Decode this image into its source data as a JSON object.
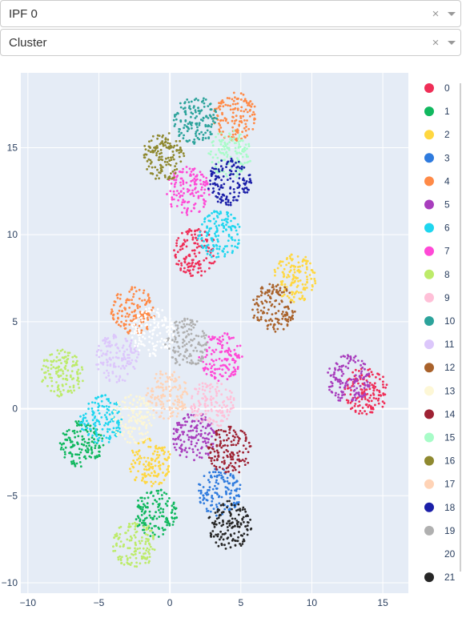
{
  "dropdowns": [
    {
      "value": "IPF 0",
      "clear_icon": "close-icon",
      "arrow_icon": "chevron-down-icon"
    },
    {
      "value": "Cluster",
      "clear_icon": "close-icon",
      "arrow_icon": "chevron-down-icon"
    }
  ],
  "chart_data": {
    "type": "scatter",
    "title": "",
    "xlabel": "",
    "ylabel": "",
    "xlim": [
      -10.5,
      16.8
    ],
    "ylim": [
      -10.6,
      19.3
    ],
    "xticks": [
      -10,
      -5,
      0,
      5,
      10,
      15
    ],
    "yticks": [
      -10,
      -5,
      0,
      5,
      10,
      15
    ],
    "grid": true,
    "plot_background": "#e5ecf6",
    "legend_placement": "right",
    "series": [
      {
        "name": "0",
        "color": "#ef2e57",
        "centers": [
          [
            1.8,
            9.0
          ],
          [
            13.8,
            1.0
          ]
        ]
      },
      {
        "name": "1",
        "color": "#11b85f",
        "centers": [
          [
            -6.2,
            -2.0
          ],
          [
            -1.0,
            -6.0
          ]
        ]
      },
      {
        "name": "2",
        "color": "#ffd740",
        "centers": [
          [
            -1.4,
            -3.1
          ],
          [
            8.8,
            7.5
          ]
        ]
      },
      {
        "name": "3",
        "color": "#2f7bde",
        "centers": [
          [
            3.5,
            -4.8
          ]
        ]
      },
      {
        "name": "4",
        "color": "#ff8a47",
        "centers": [
          [
            4.6,
            16.8
          ],
          [
            -2.6,
            5.6
          ]
        ]
      },
      {
        "name": "5",
        "color": "#a83dbd",
        "centers": [
          [
            12.6,
            1.7
          ],
          [
            1.7,
            -1.6
          ]
        ]
      },
      {
        "name": "6",
        "color": "#1fd6ef",
        "centers": [
          [
            3.5,
            10.0
          ],
          [
            -4.8,
            -0.6
          ]
        ]
      },
      {
        "name": "7",
        "color": "#ff49d6",
        "centers": [
          [
            1.3,
            12.5
          ],
          [
            3.6,
            3.0
          ]
        ]
      },
      {
        "name": "8",
        "color": "#bdeb6a",
        "centers": [
          [
            -7.6,
            2.0
          ],
          [
            -2.5,
            -7.8
          ]
        ]
      },
      {
        "name": "9",
        "color": "#ffc0d8",
        "centers": [
          [
            3.0,
            0.3
          ]
        ]
      },
      {
        "name": "10",
        "color": "#2ca39b",
        "centers": [
          [
            1.8,
            16.6
          ]
        ]
      },
      {
        "name": "11",
        "color": "#dcc7fb",
        "centers": [
          [
            -3.7,
            2.9
          ]
        ]
      },
      {
        "name": "12",
        "color": "#a9622b",
        "centers": [
          [
            7.3,
            5.8
          ]
        ]
      },
      {
        "name": "13",
        "color": "#fdf7d6",
        "centers": [
          [
            -2.6,
            -0.6
          ]
        ]
      },
      {
        "name": "14",
        "color": "#9e2233",
        "centers": [
          [
            4.2,
            -2.4
          ]
        ]
      },
      {
        "name": "15",
        "color": "#a8fcc8",
        "centers": [
          [
            4.2,
            14.6
          ]
        ]
      },
      {
        "name": "16",
        "color": "#8f8930",
        "centers": [
          [
            -0.4,
            14.5
          ]
        ]
      },
      {
        "name": "17",
        "color": "#ffd3b6",
        "centers": [
          [
            -0.2,
            0.8
          ]
        ]
      },
      {
        "name": "18",
        "color": "#1b1fa8",
        "centers": [
          [
            4.2,
            13.0
          ]
        ]
      },
      {
        "name": "19",
        "color": "#b0b0b0",
        "centers": [
          [
            1.2,
            3.8
          ]
        ]
      },
      {
        "name": "20",
        "color": "#ffffff",
        "centers": [
          [
            -1.2,
            4.4
          ]
        ]
      },
      {
        "name": "21",
        "color": "#262626",
        "centers": [
          [
            4.2,
            -6.7
          ]
        ]
      }
    ]
  }
}
